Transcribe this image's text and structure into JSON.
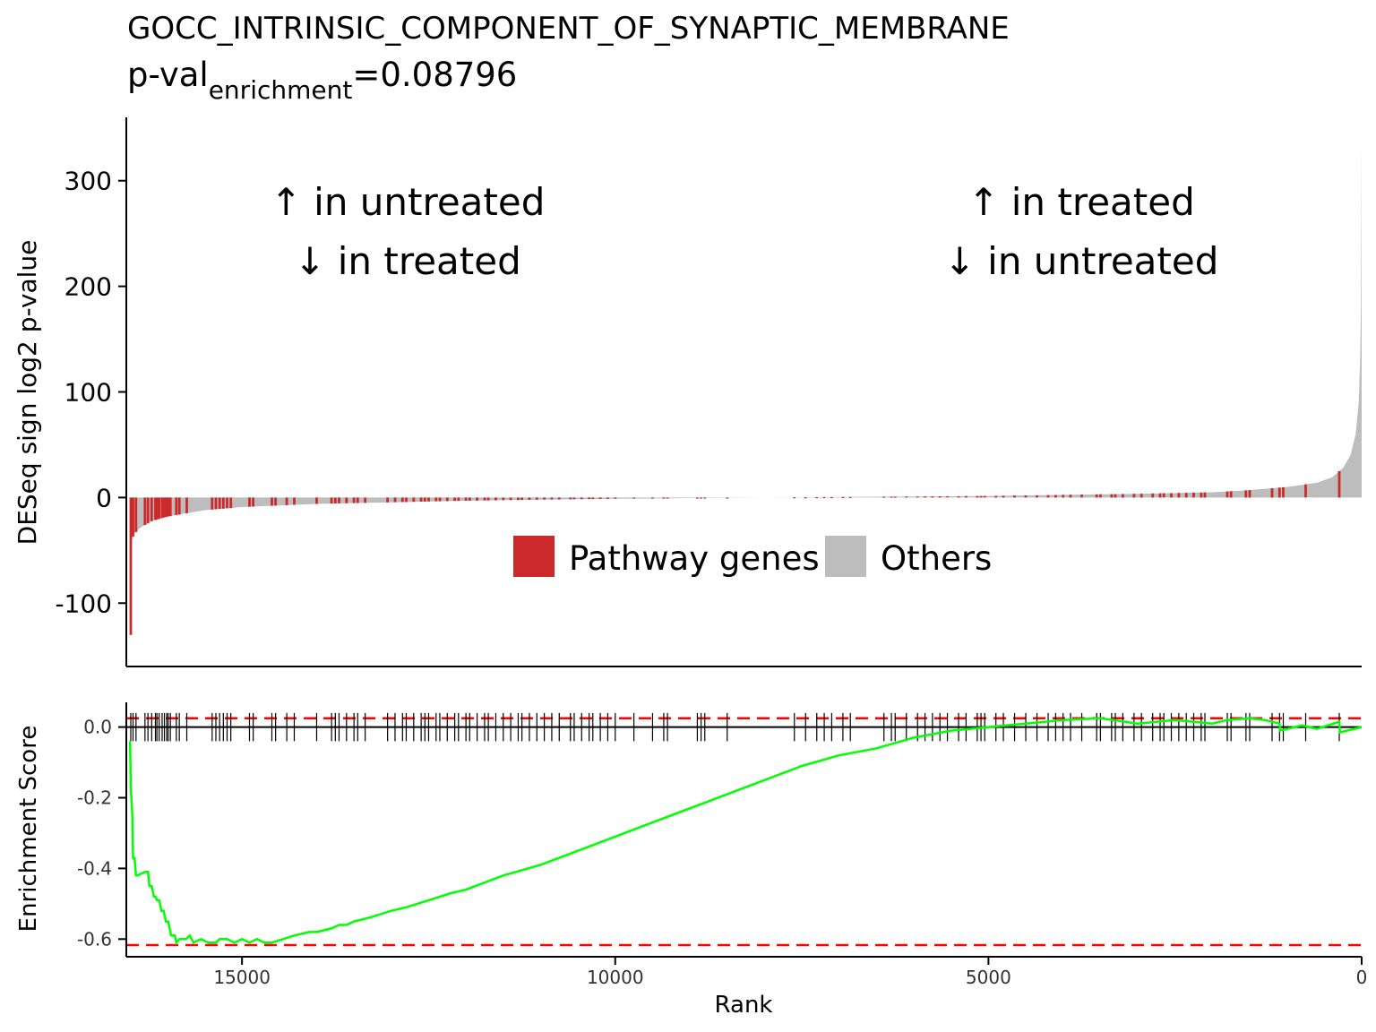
{
  "title": {
    "line1": "GOCC_INTRINSIC_COMPONENT_OF_SYNAPTIC_MEMBRANE",
    "pval_prefix": "p-val",
    "pval_subscript": "enrichment",
    "pval_value": "=0.08796"
  },
  "annotations": {
    "left_line1": "↑ in untreated",
    "left_line2": "↓ in treated",
    "right_line1": "↑ in treated",
    "right_line2": "↓ in untreated"
  },
  "legend": {
    "pathway_label": "Pathway genes",
    "others_label": "Others"
  },
  "colors": {
    "pathway": "#cc2a2a",
    "others": "#bdbdbd",
    "es_line": "#00ff00",
    "threshold": "#ff0000",
    "tick": "#000000"
  },
  "chart_data": [
    {
      "type": "bar",
      "panel": "ranked-statistic",
      "ylabel": "DESeq sign log2 p-value",
      "xlim": [
        16550,
        0
      ],
      "ylim": [
        -160,
        360
      ],
      "yticks": [
        300,
        200,
        100,
        0,
        -100
      ],
      "ytick_labels": [
        "300",
        "200",
        "100",
        "0",
        "-100"
      ],
      "n_genes": 16500,
      "curve_points": [
        [
          16500,
          -145
        ],
        [
          16480,
          -40
        ],
        [
          16440,
          -34
        ],
        [
          16350,
          -28
        ],
        [
          16200,
          -22
        ],
        [
          16000,
          -18
        ],
        [
          15500,
          -12
        ],
        [
          15000,
          -9
        ],
        [
          14000,
          -6
        ],
        [
          13000,
          -4.5
        ],
        [
          12000,
          -3
        ],
        [
          11000,
          -2
        ],
        [
          10000,
          -1.2
        ],
        [
          9000,
          -0.5
        ],
        [
          8000,
          0
        ],
        [
          7000,
          0.5
        ],
        [
          6000,
          1
        ],
        [
          5000,
          1.5
        ],
        [
          4000,
          2.5
        ],
        [
          3000,
          3.5
        ],
        [
          2000,
          5
        ],
        [
          1500,
          7
        ],
        [
          1000,
          10
        ],
        [
          600,
          14
        ],
        [
          400,
          19
        ],
        [
          250,
          28
        ],
        [
          150,
          40
        ],
        [
          80,
          60
        ],
        [
          40,
          90
        ],
        [
          20,
          130
        ],
        [
          10,
          180
        ],
        [
          5,
          250
        ],
        [
          0,
          345
        ]
      ],
      "pathway_gene_ranks": [
        16490,
        16460,
        16420,
        16300,
        16260,
        16210,
        16160,
        16140,
        16110,
        16070,
        16040,
        16010,
        15990,
        15960,
        15880,
        15840,
        15740,
        15400,
        15350,
        15300,
        15250,
        15200,
        15150,
        14900,
        14850,
        14600,
        14550,
        14400,
        14300,
        14000,
        13800,
        13750,
        13700,
        13600,
        13500,
        13450,
        13350,
        13050,
        12950,
        12850,
        12800,
        12700,
        12600,
        12550,
        12500,
        12400,
        12350,
        12250,
        12150,
        12100,
        12000,
        11950,
        11850,
        11750,
        11700,
        11600,
        11500,
        11400,
        11300,
        11250,
        11150,
        11050,
        10950,
        10850,
        10750,
        10600,
        10550,
        10450,
        10350,
        10300,
        10200,
        10100,
        10000,
        9750,
        9500,
        9350,
        9300,
        8900,
        8850,
        8800,
        8500,
        7600,
        7450,
        7300,
        7200,
        7100,
        6950,
        6850,
        6400,
        6300,
        6250,
        6100,
        5950,
        5850,
        5750,
        5650,
        5550,
        5400,
        5300,
        5150,
        5100,
        5050,
        4900,
        4800,
        4650,
        4500,
        4350,
        4200,
        4100,
        4000,
        3900,
        3750,
        3550,
        3500,
        3350,
        3300,
        3200,
        3050,
        2950,
        2800,
        2700,
        2650,
        2550,
        2450,
        2350,
        2250,
        2150,
        2100,
        1800,
        1750,
        1550,
        1500,
        1200,
        1100,
        1050,
        750,
        300
      ]
    },
    {
      "type": "line",
      "panel": "enrichment-score",
      "xlabel": "Rank",
      "ylabel": "Enrichment Score",
      "xlim": [
        16550,
        0
      ],
      "ylim": [
        -0.65,
        0.07
      ],
      "xticks": [
        15000,
        10000,
        5000,
        0
      ],
      "xtick_labels": [
        "15000",
        "10000",
        "5000",
        "0"
      ],
      "yticks": [
        0.0,
        -0.2,
        -0.4,
        -0.6
      ],
      "ytick_labels": [
        "0.0",
        "-0.2",
        "-0.4",
        "-0.6"
      ],
      "upper_threshold": 0.025,
      "lower_threshold": -0.617,
      "x": [
        16500,
        16490,
        16470,
        16460,
        16440,
        16420,
        16400,
        16300,
        16260,
        16240,
        16210,
        16180,
        16160,
        16140,
        16110,
        16080,
        16050,
        16020,
        15990,
        15950,
        15900,
        15880,
        15840,
        15750,
        15700,
        15650,
        15550,
        15450,
        15400,
        15350,
        15300,
        15200,
        15100,
        15000,
        14900,
        14800,
        14700,
        14600,
        14450,
        14300,
        14100,
        14000,
        13800,
        13700,
        13600,
        13500,
        13300,
        13000,
        12800,
        12500,
        12200,
        12000,
        11500,
        11000,
        10500,
        10000,
        9500,
        9000,
        8500,
        8000,
        7500,
        7000,
        6500,
        6000,
        5500,
        5000,
        4500,
        4000,
        3500,
        3000,
        2500,
        2000,
        1800,
        1500,
        1300,
        1100,
        1090,
        800,
        600,
        300,
        290,
        0
      ],
      "y": [
        -0.04,
        -0.17,
        -0.25,
        -0.37,
        -0.37,
        -0.42,
        -0.42,
        -0.41,
        -0.41,
        -0.45,
        -0.45,
        -0.48,
        -0.48,
        -0.49,
        -0.49,
        -0.52,
        -0.52,
        -0.55,
        -0.55,
        -0.59,
        -0.59,
        -0.61,
        -0.6,
        -0.6,
        -0.59,
        -0.61,
        -0.6,
        -0.61,
        -0.61,
        -0.61,
        -0.6,
        -0.6,
        -0.61,
        -0.6,
        -0.61,
        -0.6,
        -0.61,
        -0.61,
        -0.6,
        -0.59,
        -0.58,
        -0.58,
        -0.57,
        -0.56,
        -0.56,
        -0.55,
        -0.54,
        -0.52,
        -0.51,
        -0.49,
        -0.47,
        -0.46,
        -0.42,
        -0.39,
        -0.35,
        -0.31,
        -0.27,
        -0.23,
        -0.19,
        -0.15,
        -0.11,
        -0.08,
        -0.06,
        -0.03,
        -0.01,
        0.0,
        0.01,
        0.02,
        0.025,
        0.01,
        0.02,
        0.01,
        0.02,
        0.025,
        0.02,
        0.01,
        -0.01,
        0.005,
        -0.005,
        0.015,
        -0.015,
        0.0
      ]
    }
  ]
}
